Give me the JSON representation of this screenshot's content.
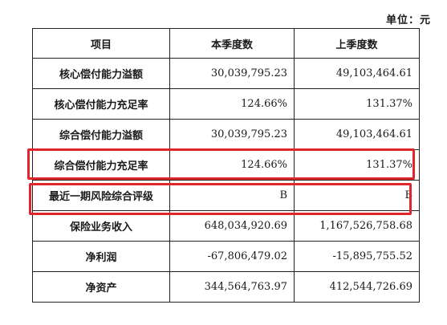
{
  "unit_label": "单位：元",
  "table": {
    "headers": [
      "项目",
      "本季度数",
      "上季度数"
    ],
    "rows": [
      {
        "label": "核心偿付能力溢额",
        "current": "30,039,795.23",
        "previous": "49,103,464.61"
      },
      {
        "label": "核心偿付能力充足率",
        "current": "124.66%",
        "previous": "131.37%"
      },
      {
        "label": "综合偿付能力溢额",
        "current": "30,039,795.23",
        "previous": "49,103,464.61"
      },
      {
        "label": "综合偿付能力充足率",
        "current": "124.66%",
        "previous": "131.37%"
      },
      {
        "label": "最近一期风险综合评级",
        "current": "B",
        "previous": "B"
      },
      {
        "label": "保险业务收入",
        "current": "648,034,920.69",
        "previous": "1,167,526,758.68"
      },
      {
        "label": "净利润",
        "current": "-67,806,479.02",
        "previous": "-15,895,755.52"
      },
      {
        "label": "净资产",
        "current": "344,564,763.97",
        "previous": "412,544,726.69"
      }
    ]
  },
  "highlight_color": "#e0262a"
}
